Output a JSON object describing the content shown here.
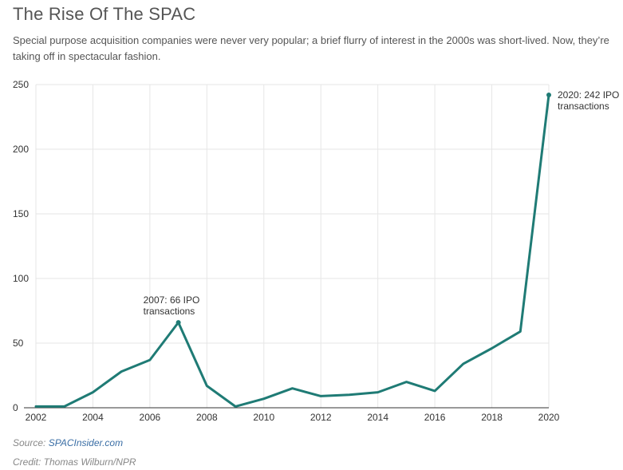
{
  "header": {
    "title": "The Rise Of The SPAC",
    "subtitle": "Special purpose acquisition companies were never very popular; a brief flurry of interest in the 2000s was short-lived. Now, they’re taking off in spectacular fashion."
  },
  "footer": {
    "source_label": "Source:",
    "source_link": "SPACInsider.com",
    "credit": "Credit: Thomas Wilburn/NPR"
  },
  "colors": {
    "line": "#1f7b75",
    "grid": "#e6e6e6",
    "axis": "#333333"
  },
  "chart_data": {
    "type": "line",
    "title": "The Rise Of The SPAC",
    "xlabel": "",
    "ylabel": "",
    "xlim": [
      2002,
      2020
    ],
    "ylim": [
      0,
      250
    ],
    "x_ticks": [
      "2002",
      "2004",
      "2006",
      "2008",
      "2010",
      "2012",
      "2014",
      "2016",
      "2018",
      "2020"
    ],
    "y_ticks": [
      "0",
      "50",
      "100",
      "150",
      "200",
      "250"
    ],
    "grid": true,
    "series": [
      {
        "name": "SPAC IPO transactions",
        "x": [
          2002,
          2003,
          2004,
          2005,
          2006,
          2007,
          2008,
          2009,
          2010,
          2011,
          2012,
          2013,
          2014,
          2015,
          2016,
          2017,
          2018,
          2019,
          2020
        ],
        "values": [
          1,
          1,
          12,
          28,
          37,
          66,
          17,
          1,
          7,
          15,
          9,
          10,
          12,
          20,
          13,
          34,
          46,
          59,
          242
        ]
      }
    ],
    "annotations": [
      {
        "x": 2007,
        "y": 66,
        "lines": [
          "2007: 66 IPO",
          "transactions"
        ]
      },
      {
        "x": 2020,
        "y": 242,
        "lines": [
          "2020: 242 IPO",
          "transactions"
        ]
      }
    ]
  }
}
